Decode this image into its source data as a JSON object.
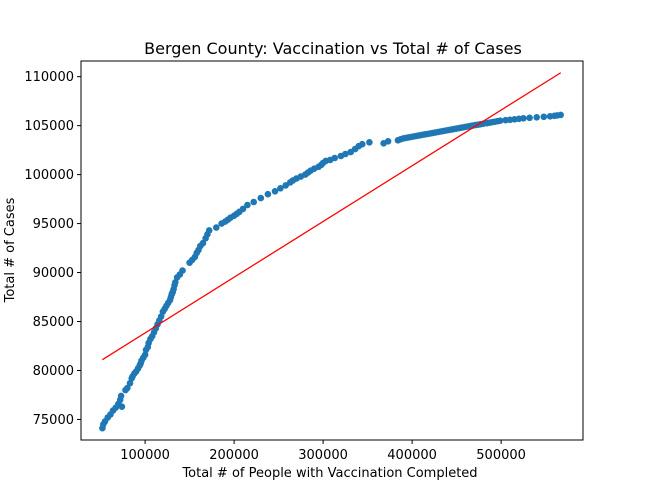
{
  "chart_data": {
    "type": "scatter",
    "title": "Bergen County: Vaccination vs Total # of Cases",
    "xlabel": "Total # of People with Vaccination Completed",
    "ylabel": "Total # of Cases",
    "xlim": [
      28000,
      592000
    ],
    "ylim": [
      72900,
      111600
    ],
    "xticks": [
      100000,
      200000,
      300000,
      400000,
      500000
    ],
    "yticks": [
      75000,
      80000,
      85000,
      90000,
      95000,
      100000,
      105000,
      110000
    ],
    "grid": false,
    "colors": {
      "points": "#1f77b4",
      "fit_line": "#ff0000"
    },
    "fit_line": {
      "x": [
        52000,
        567000
      ],
      "y": [
        81100,
        110400
      ]
    },
    "points": {
      "x": [
        52000,
        53000,
        55000,
        58000,
        61000,
        64000,
        67000,
        70000,
        72000,
        73000,
        74000,
        78000,
        80000,
        83000,
        85000,
        86000,
        88000,
        90000,
        92000,
        94000,
        95000,
        96000,
        98000,
        100000,
        101000,
        103000,
        104000,
        106000,
        108000,
        110000,
        112000,
        114000,
        116000,
        118000,
        120000,
        122000,
        124000,
        126000,
        128000,
        129000,
        130000,
        131000,
        132000,
        133000,
        134000,
        136000,
        139000,
        142000,
        150000,
        153000,
        156000,
        158000,
        160000,
        162000,
        165000,
        168000,
        170000,
        172000,
        180000,
        186000,
        190000,
        193000,
        196000,
        200000,
        203000,
        206000,
        210000,
        215000,
        222000,
        230000,
        238000,
        246000,
        252000,
        258000,
        263000,
        266000,
        270000,
        275000,
        280000,
        283000,
        286000,
        290000,
        295000,
        298000,
        300000,
        303000,
        308000,
        313000,
        320000,
        325000,
        331000,
        336000,
        340000,
        344000,
        352000,
        368000,
        373000,
        384000,
        387000,
        390000,
        393000,
        396000,
        399000,
        402000,
        405000,
        408000,
        411000,
        414000,
        417000,
        420000,
        423000,
        426000,
        429000,
        432000,
        435000,
        438000,
        441000,
        444000,
        447000,
        450000,
        453000,
        456000,
        459000,
        462000,
        465000,
        468000,
        471000,
        474000,
        477000,
        480000,
        484000,
        487000,
        490000,
        493000,
        496000,
        499000,
        505000,
        510000,
        515000,
        520000,
        525000,
        532000,
        540000,
        548000,
        555000,
        560000,
        563000,
        567000
      ],
      "y": [
        74100,
        74500,
        74800,
        75200,
        75500,
        75900,
        76200,
        76600,
        77000,
        77400,
        76300,
        78000,
        78200,
        78700,
        79200,
        79400,
        79700,
        79900,
        80200,
        80500,
        80700,
        81000,
        81300,
        81600,
        82100,
        82400,
        82800,
        83200,
        83500,
        83900,
        84300,
        84700,
        85100,
        85500,
        86000,
        86300,
        86600,
        86900,
        87200,
        87500,
        87800,
        88000,
        88300,
        88700,
        89000,
        89500,
        89800,
        90200,
        91000,
        91300,
        91600,
        92000,
        92300,
        92700,
        93000,
        93500,
        93900,
        94300,
        94600,
        95000,
        95200,
        95400,
        95600,
        95800,
        96000,
        96200,
        96500,
        96900,
        97200,
        97600,
        98000,
        98300,
        98600,
        98900,
        99200,
        99400,
        99600,
        99800,
        100000,
        100200,
        100400,
        100600,
        100800,
        101000,
        101200,
        101400,
        101500,
        101700,
        101900,
        102100,
        102300,
        102600,
        102900,
        103100,
        103300,
        103200,
        103400,
        103500,
        103600,
        103700,
        103750,
        103800,
        103850,
        103900,
        103950,
        104000,
        104050,
        104100,
        104150,
        104200,
        104250,
        104300,
        104350,
        104400,
        104450,
        104500,
        104550,
        104600,
        104650,
        104700,
        104750,
        104800,
        104850,
        104900,
        104950,
        105000,
        105050,
        105100,
        105150,
        105200,
        105250,
        105300,
        105350,
        105400,
        105450,
        105500,
        105550,
        105600,
        105650,
        105700,
        105750,
        105800,
        105850,
        105900,
        105950,
        106000,
        106050,
        106100
      ]
    }
  }
}
